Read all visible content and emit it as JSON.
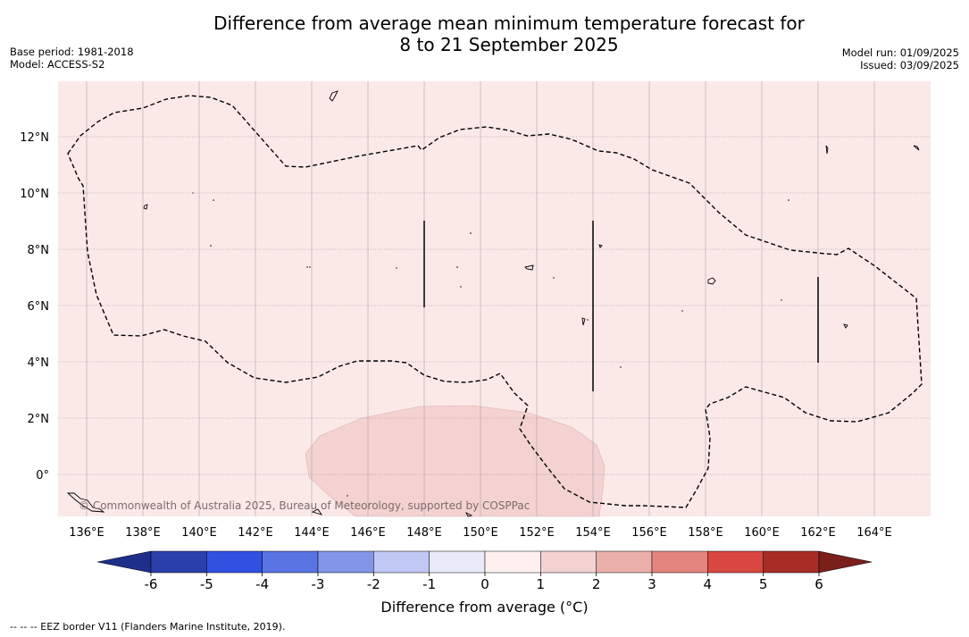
{
  "header": {
    "title_line1": "Difference from average mean minimum temperature forecast for",
    "title_line2": "8 to 21 September 2025",
    "base_period": "Base period: 1981-2018",
    "model": "Model: ACCESS-S2",
    "model_run": "Model run: 01/09/2025",
    "issued": "Issued: 03/09/2025"
  },
  "map": {
    "lon_labels": [
      "136°E",
      "138°E",
      "140°E",
      "142°E",
      "144°E",
      "146°E",
      "148°E",
      "150°E",
      "152°E",
      "154°E",
      "156°E",
      "158°E",
      "160°E",
      "162°E",
      "164°E"
    ],
    "lat_labels": [
      "12°N",
      "10°N",
      "8°N",
      "6°N",
      "4°N",
      "2°N",
      "0°"
    ],
    "copyright": "© Commonwealth of Australia 2025, Bureau of Meteorology, supported by COSPPac",
    "background_color": "#fbe9e8",
    "anomaly_patch_color": "#f3d2d1"
  },
  "colorbar": {
    "tick_labels": [
      "-6",
      "-5",
      "-4",
      "-3",
      "-2",
      "-1",
      "0",
      "1",
      "2",
      "3",
      "4",
      "5",
      "6"
    ],
    "colors": [
      "#2b3faa",
      "#3152e0",
      "#5a74e3",
      "#8395e9",
      "#c0c8f3",
      "#e8eafa",
      "#fdf0ef",
      "#f2d3d2",
      "#ebafaa",
      "#e4847f",
      "#d84740",
      "#a82d27"
    ],
    "under_color": "#1e2f8a",
    "over_color": "#7b1f1b",
    "label": "Difference from average (°C)"
  },
  "footnote": "--  --  -- EEZ border V11 (Flanders Marine Institute, 2019)."
}
